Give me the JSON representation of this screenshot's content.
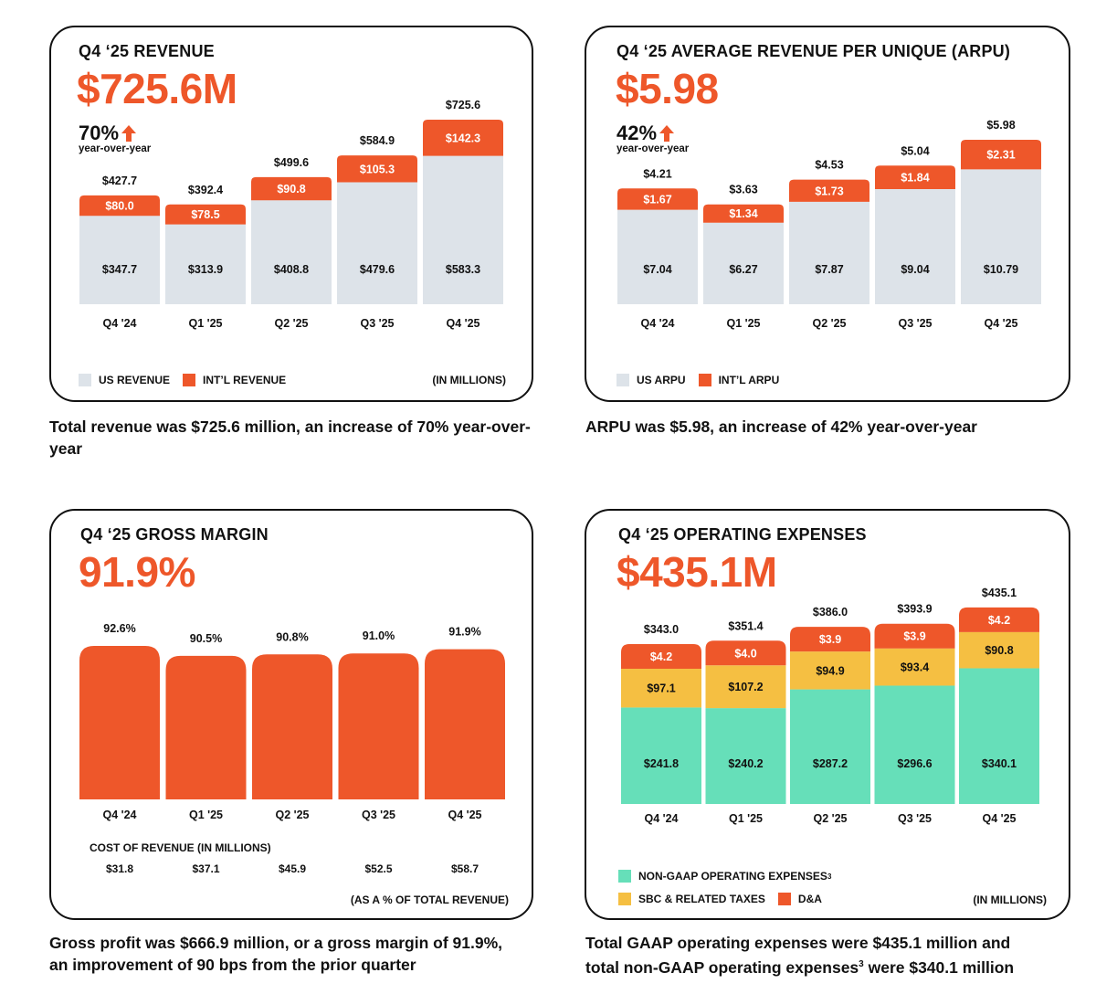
{
  "colors": {
    "accent": "#ee572a",
    "us": "#dde3e9",
    "sbc": "#f5bf42",
    "nongaap": "#66dfb9",
    "text": "#111111",
    "white": "#ffffff"
  },
  "revenue_card": {
    "title": "Q4 ‘25 REVENUE",
    "big_value": "$725.6M",
    "yoy_pct": "70%",
    "yoy_label": "year-over-year",
    "legend": [
      "US REVENUE",
      "INT’L REVENUE"
    ],
    "unit_note": "(IN MILLIONS)",
    "caption": "Total revenue was $725.6 million, an increase of 70% year-over-year"
  },
  "arpu_card": {
    "title": "Q4 ‘25 AVERAGE REVENUE PER UNIQUE (ARPU)",
    "big_value": "$5.98",
    "yoy_pct": "42%",
    "yoy_label": "year-over-year",
    "legend": [
      "US ARPU",
      "INT’L ARPU"
    ],
    "caption": "ARPU was $5.98, an increase of 42% year-over-year"
  },
  "margin_card": {
    "title": "Q4 ‘25 GROSS MARGIN",
    "big_value": "91.9%",
    "cost_title": "COST OF REVENUE (IN MILLIONS)",
    "cost_values": [
      "$31.8",
      "$37.1",
      "$45.9",
      "$52.5",
      "$58.7"
    ],
    "unit_note": "(AS A % OF TOTAL REVENUE)",
    "caption_line1": "Gross profit was $666.9 million, or a gross margin of 91.9%,",
    "caption_line2": "an improvement of 90 bps from the prior quarter"
  },
  "opex_card": {
    "title": "Q4 ‘25 OPERATING EXPENSES",
    "big_value": "$435.1M",
    "legend_nongaap": "NON-GAAP OPERATING EXPENSES",
    "legend_nongaap_sup": "3",
    "legend_sbc": "SBC & RELATED TAXES",
    "legend_da": "D&A",
    "unit_note": "(IN MILLIONS)",
    "caption_line1": "Total GAAP operating expenses were $435.1 million and",
    "caption_line2a": "total non-GAAP operating expenses",
    "caption_sup": "3",
    "caption_line2b": " were $340.1 million"
  },
  "chart_data": [
    {
      "type": "bar",
      "stacked": true,
      "title": "Q4 ‘25 REVENUE",
      "categories": [
        "Q4 '24",
        "Q1 '25",
        "Q2 '25",
        "Q3 '25",
        "Q4 '25"
      ],
      "series": [
        {
          "name": "US REVENUE",
          "values": [
            347.7,
            313.9,
            408.8,
            479.6,
            583.3
          ],
          "labels": [
            "$347.7",
            "$313.9",
            "$408.8",
            "$479.6",
            "$583.3"
          ]
        },
        {
          "name": "INT’L REVENUE",
          "values": [
            80.0,
            78.5,
            90.8,
            105.3,
            142.3
          ],
          "labels": [
            "$80.0",
            "$78.5",
            "$90.8",
            "$105.3",
            "$142.3"
          ]
        }
      ],
      "totals": [
        427.7,
        392.4,
        499.6,
        584.9,
        725.6
      ],
      "total_labels": [
        "$427.7",
        "$392.4",
        "$499.6",
        "$584.9",
        "$725.6"
      ],
      "ylabel": "(IN MILLIONS)",
      "legend": "bottom-left"
    },
    {
      "type": "bar",
      "stacked": false,
      "note": "US and Int'l ARPU shown with separate labels; bar total label equals overall ARPU",
      "title": "Q4 ‘25 AVERAGE REVENUE PER UNIQUE (ARPU)",
      "categories": [
        "Q4 '24",
        "Q1 '25",
        "Q2 '25",
        "Q3 '25",
        "Q4 '25"
      ],
      "series": [
        {
          "name": "US ARPU",
          "values": [
            7.04,
            6.27,
            7.87,
            9.04,
            10.79
          ],
          "labels": [
            "$7.04",
            "$6.27",
            "$7.87",
            "$9.04",
            "$10.79"
          ]
        },
        {
          "name": "INT’L ARPU",
          "values": [
            1.67,
            1.34,
            1.73,
            1.84,
            2.31
          ],
          "labels": [
            "$1.67",
            "$1.34",
            "$1.73",
            "$1.84",
            "$2.31"
          ]
        }
      ],
      "totals": [
        4.21,
        3.63,
        4.53,
        5.04,
        5.98
      ],
      "total_labels": [
        "$4.21",
        "$3.63",
        "$4.53",
        "$5.04",
        "$5.98"
      ],
      "legend": "bottom-left"
    },
    {
      "type": "bar",
      "title": "Q4 ‘25 GROSS MARGIN",
      "categories": [
        "Q4 '24",
        "Q1 '25",
        "Q2 '25",
        "Q3 '25",
        "Q4 '25"
      ],
      "values": [
        92.6,
        90.5,
        90.8,
        91.0,
        91.9
      ],
      "value_labels": [
        "92.6%",
        "90.5%",
        "90.8%",
        "91.0%",
        "91.9%"
      ],
      "ylabel": "(AS A % OF TOTAL REVENUE)",
      "cost_of_revenue": [
        31.8,
        37.1,
        45.9,
        52.5,
        58.7
      ]
    },
    {
      "type": "bar",
      "stacked": true,
      "title": "Q4 ‘25 OPERATING EXPENSES",
      "categories": [
        "Q4 '24",
        "Q1 '25",
        "Q2 '25",
        "Q3 '25",
        "Q4 '25"
      ],
      "series": [
        {
          "name": "NON-GAAP OPERATING EXPENSES",
          "values": [
            241.8,
            240.2,
            287.2,
            296.6,
            340.1
          ],
          "labels": [
            "$241.8",
            "$240.2",
            "$287.2",
            "$296.6",
            "$340.1"
          ]
        },
        {
          "name": "SBC & RELATED TAXES",
          "values": [
            97.1,
            107.2,
            94.9,
            93.4,
            90.8
          ],
          "labels": [
            "$97.1",
            "$107.2",
            "$94.9",
            "$93.4",
            "$90.8"
          ]
        },
        {
          "name": "D&A",
          "values": [
            4.2,
            4.0,
            3.9,
            3.9,
            4.2
          ],
          "labels": [
            "$4.2",
            "$4.0",
            "$3.9",
            "$3.9",
            "$4.2"
          ]
        }
      ],
      "totals": [
        343.0,
        351.4,
        386.0,
        393.9,
        435.1
      ],
      "total_labels": [
        "$343.0",
        "$351.4",
        "$386.0",
        "$393.9",
        "$435.1"
      ],
      "ylabel": "(IN MILLIONS)",
      "legend": "bottom-left"
    }
  ]
}
